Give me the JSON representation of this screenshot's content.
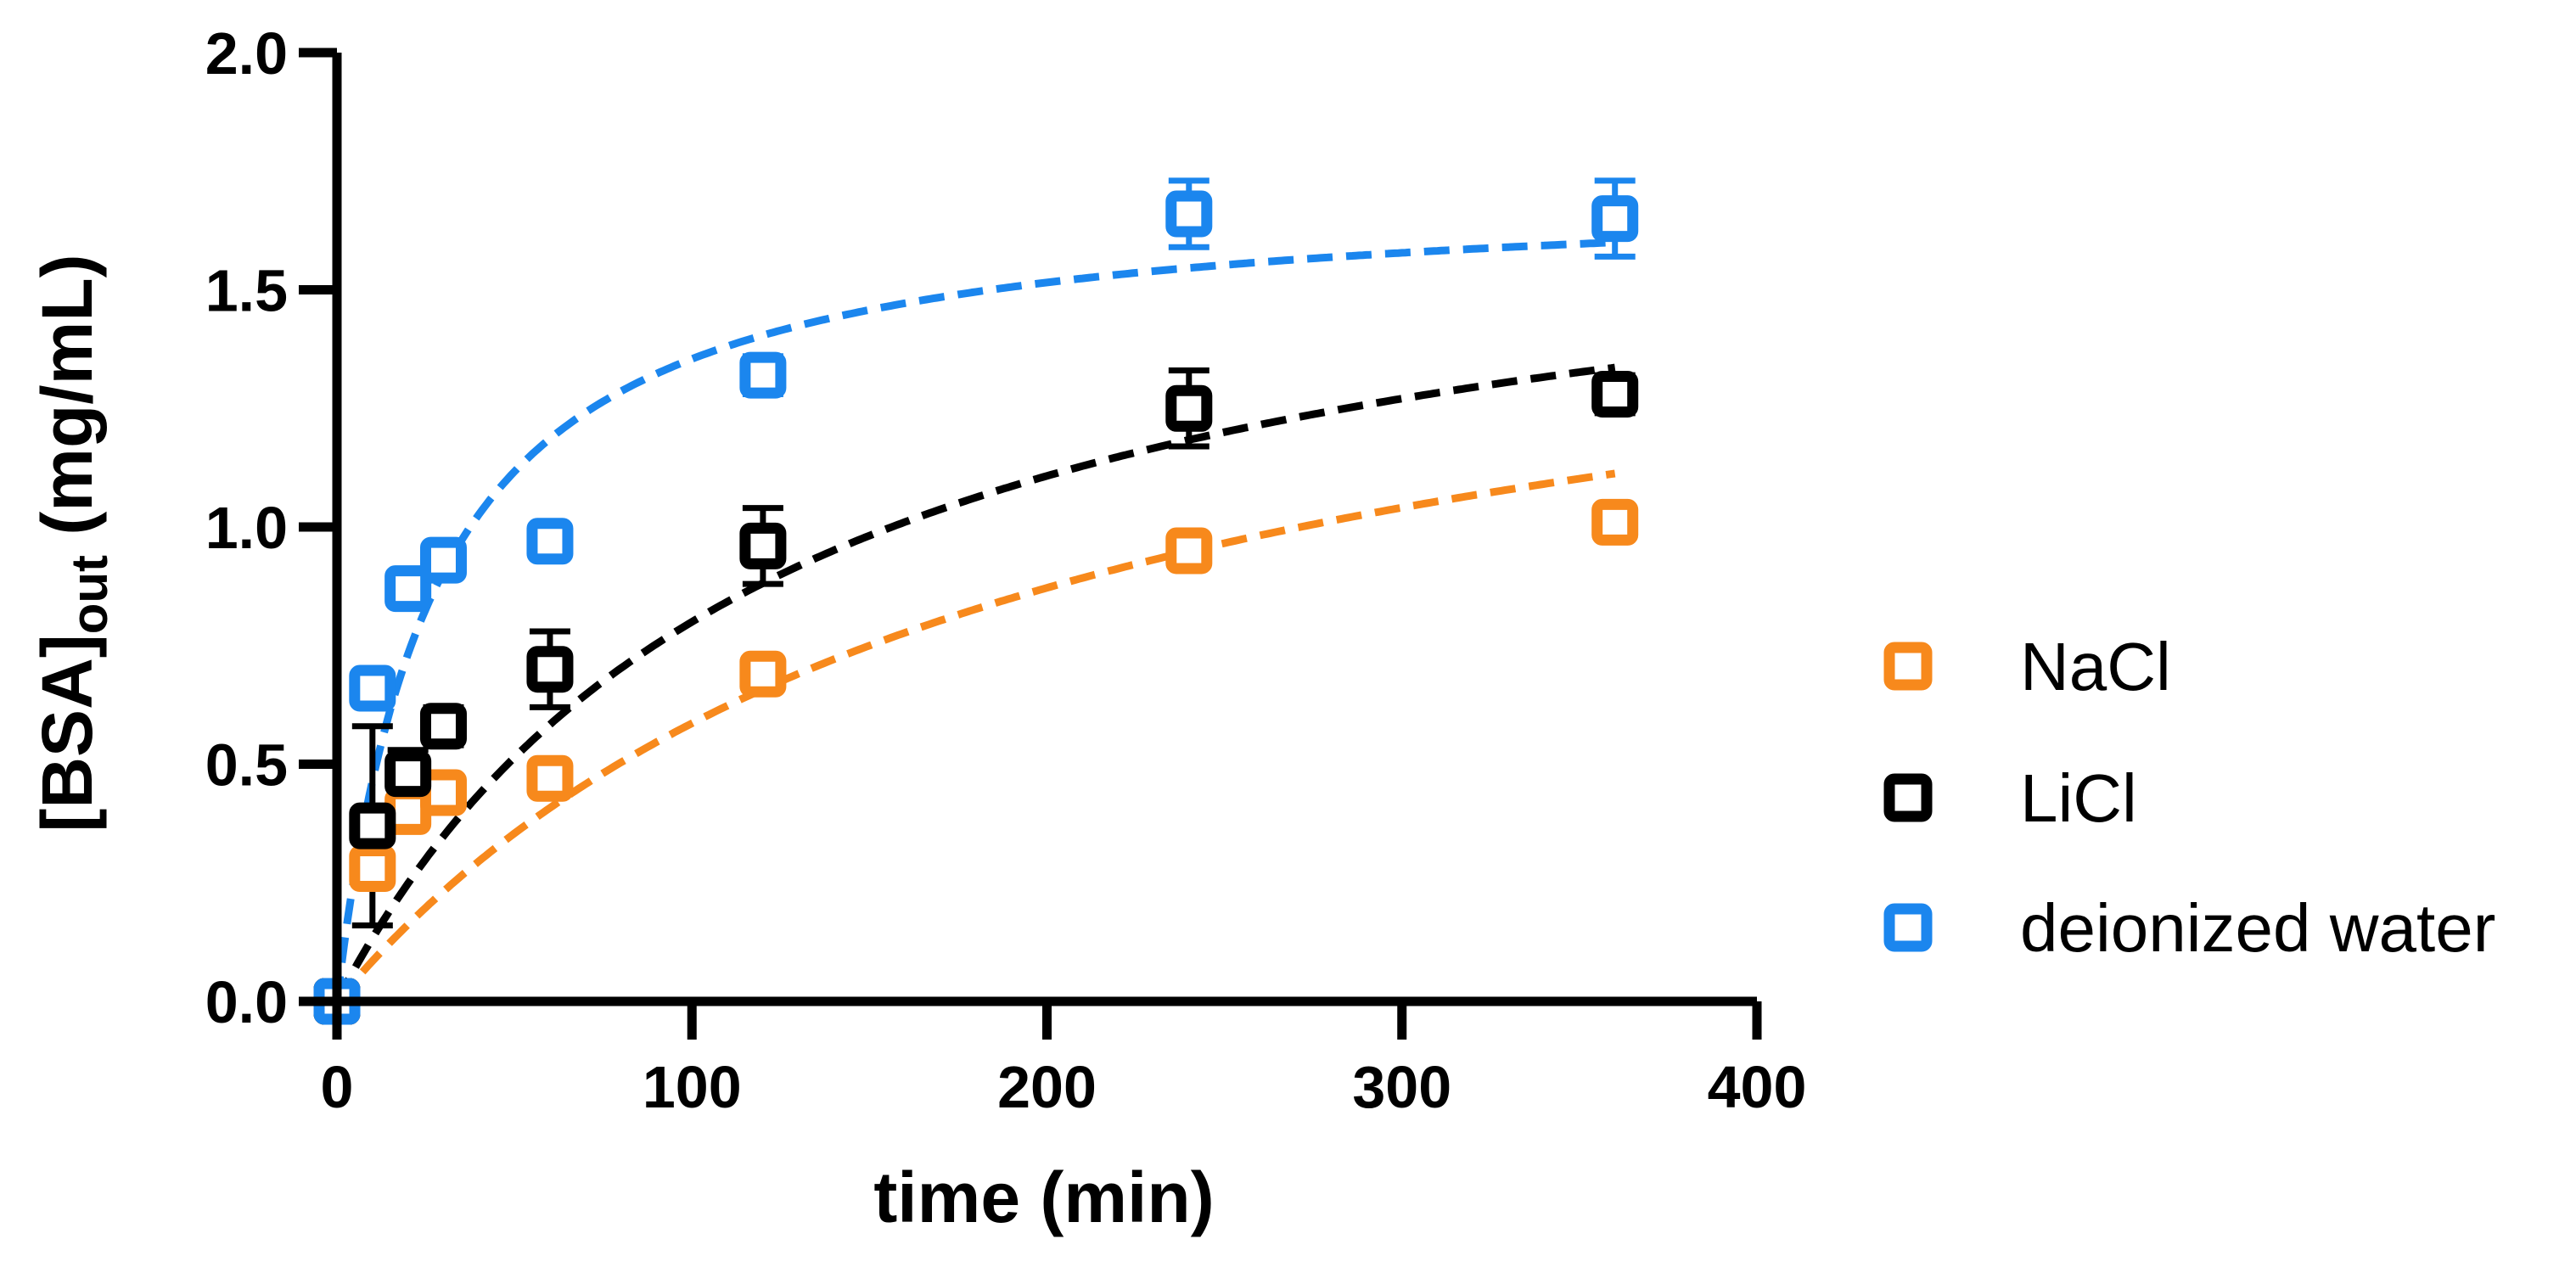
{
  "chart_data": {
    "type": "scatter",
    "title": "",
    "xlabel": "time (min)",
    "ylabel_main": "[BSA]",
    "ylabel_sub": "out",
    "ylabel_unit": " (mg/mL)",
    "xlim": [
      0,
      400
    ],
    "ylim": [
      0,
      2.0
    ],
    "x_ticks": [
      0,
      100,
      200,
      300,
      400
    ],
    "x_tick_labels": [
      "0",
      "100",
      "200",
      "300",
      "400"
    ],
    "y_ticks": [
      0,
      0.5,
      1.0,
      1.5,
      2.0
    ],
    "y_tick_labels": [
      "0.0",
      "0.5",
      "1.0",
      "1.5",
      "2.0"
    ],
    "legend_position": "right",
    "series": [
      {
        "name": "NaCl",
        "color": "#f7891c",
        "points": [
          {
            "x": 0,
            "y": 0.0,
            "err": 0.0
          },
          {
            "x": 10,
            "y": 0.28,
            "err": 0.03
          },
          {
            "x": 20,
            "y": 0.4,
            "err": 0.02
          },
          {
            "x": 30,
            "y": 0.44,
            "err": 0.02
          },
          {
            "x": 60,
            "y": 0.47,
            "err": 0.02
          },
          {
            "x": 120,
            "y": 0.69,
            "err": 0.03
          },
          {
            "x": 240,
            "y": 0.95,
            "err": 0.03
          },
          {
            "x": 360,
            "y": 1.01,
            "err": 0.02
          }
        ],
        "fit": {
          "model": "hyperbolic",
          "bmax": 1.7,
          "k": 190
        }
      },
      {
        "name": "LiCl",
        "color": "#000000",
        "points": [
          {
            "x": 0,
            "y": 0.0,
            "err": 0.0
          },
          {
            "x": 10,
            "y": 0.37,
            "err": 0.21
          },
          {
            "x": 20,
            "y": 0.48,
            "err": 0.05
          },
          {
            "x": 30,
            "y": 0.58,
            "err": 0.04
          },
          {
            "x": 60,
            "y": 0.7,
            "err": 0.08
          },
          {
            "x": 120,
            "y": 0.96,
            "err": 0.08
          },
          {
            "x": 240,
            "y": 1.25,
            "err": 0.08
          },
          {
            "x": 360,
            "y": 1.28,
            "err": 0.04
          }
        ],
        "fit": {
          "model": "hyperbolic",
          "bmax": 1.8,
          "k": 125
        }
      },
      {
        "name": "deionized water",
        "color": "#1b86ee",
        "points": [
          {
            "x": 0,
            "y": 0.0,
            "err": 0.0
          },
          {
            "x": 10,
            "y": 0.66,
            "err": 0.03
          },
          {
            "x": 20,
            "y": 0.87,
            "err": 0.03
          },
          {
            "x": 30,
            "y": 0.93,
            "err": 0.03
          },
          {
            "x": 60,
            "y": 0.97,
            "err": 0.03
          },
          {
            "x": 120,
            "y": 1.32,
            "err": 0.04
          },
          {
            "x": 240,
            "y": 1.66,
            "err": 0.07
          },
          {
            "x": 360,
            "y": 1.65,
            "err": 0.08
          }
        ],
        "fit": {
          "model": "hyperbolic",
          "bmax": 1.72,
          "k": 27
        }
      }
    ]
  }
}
